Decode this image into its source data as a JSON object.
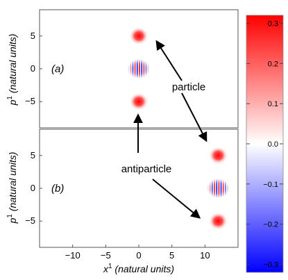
{
  "chart_data": {
    "type": "heatmap",
    "panels": [
      {
        "label": "(a)",
        "xlim": [
          -15,
          15
        ],
        "ylim": [
          -9,
          9
        ],
        "ylabel_main": "p",
        "ylabel_sup": "1",
        "ylabel_rest": " (natural units)",
        "yticks": [
          {
            "value": 5,
            "label": "5"
          },
          {
            "value": 0,
            "label": "0"
          },
          {
            "value": -5,
            "label": "-5"
          }
        ],
        "blobs": [
          {
            "x": 0,
            "y": 5,
            "kind": "gaussian-positive"
          },
          {
            "x": 0,
            "y": 0,
            "kind": "oscillating"
          },
          {
            "x": 0,
            "y": -5,
            "kind": "gaussian-positive"
          }
        ]
      },
      {
        "label": "(b)",
        "xlim": [
          -15,
          15
        ],
        "ylim": [
          -9,
          9
        ],
        "ylabel_main": "p",
        "ylabel_sup": "1",
        "ylabel_rest": " (natural units)",
        "yticks": [
          {
            "value": 5,
            "label": "5"
          },
          {
            "value": 0,
            "label": "0"
          },
          {
            "value": -5,
            "label": "-5"
          }
        ],
        "blobs": [
          {
            "x": 12,
            "y": 5,
            "kind": "gaussian-positive"
          },
          {
            "x": 12,
            "y": 0,
            "kind": "oscillating"
          },
          {
            "x": 12,
            "y": -5,
            "kind": "gaussian-positive"
          }
        ]
      }
    ],
    "xlabel_main": "x",
    "xlabel_sup": "1",
    "xlabel_rest": " (natural units)",
    "xticks": [
      {
        "value": -10,
        "label": "-10"
      },
      {
        "value": -5,
        "label": "-5"
      },
      {
        "value": 0,
        "label": "0"
      },
      {
        "value": 5,
        "label": "5"
      },
      {
        "value": 10,
        "label": "10"
      }
    ],
    "colorbar": {
      "range": [
        -0.32,
        0.32
      ],
      "ticks": [
        {
          "value": 0.3,
          "label": "0.3"
        },
        {
          "value": 0.2,
          "label": "0.2"
        },
        {
          "value": 0.1,
          "label": "0.1"
        },
        {
          "value": 0.0,
          "label": "0.0"
        },
        {
          "value": -0.1,
          "label": "-0.1"
        },
        {
          "value": -0.2,
          "label": "-0.2"
        },
        {
          "value": -0.3,
          "label": "-0.3"
        }
      ],
      "colors": {
        "positive": "#ff0000",
        "zero": "#ffffff",
        "negative": "#0000ff"
      }
    },
    "annotations": [
      {
        "text": "particle",
        "panel": 0,
        "x": 7,
        "y": -2
      },
      {
        "text": "antiparticle",
        "panel": 1,
        "x": 0,
        "y": 2.5
      }
    ]
  }
}
